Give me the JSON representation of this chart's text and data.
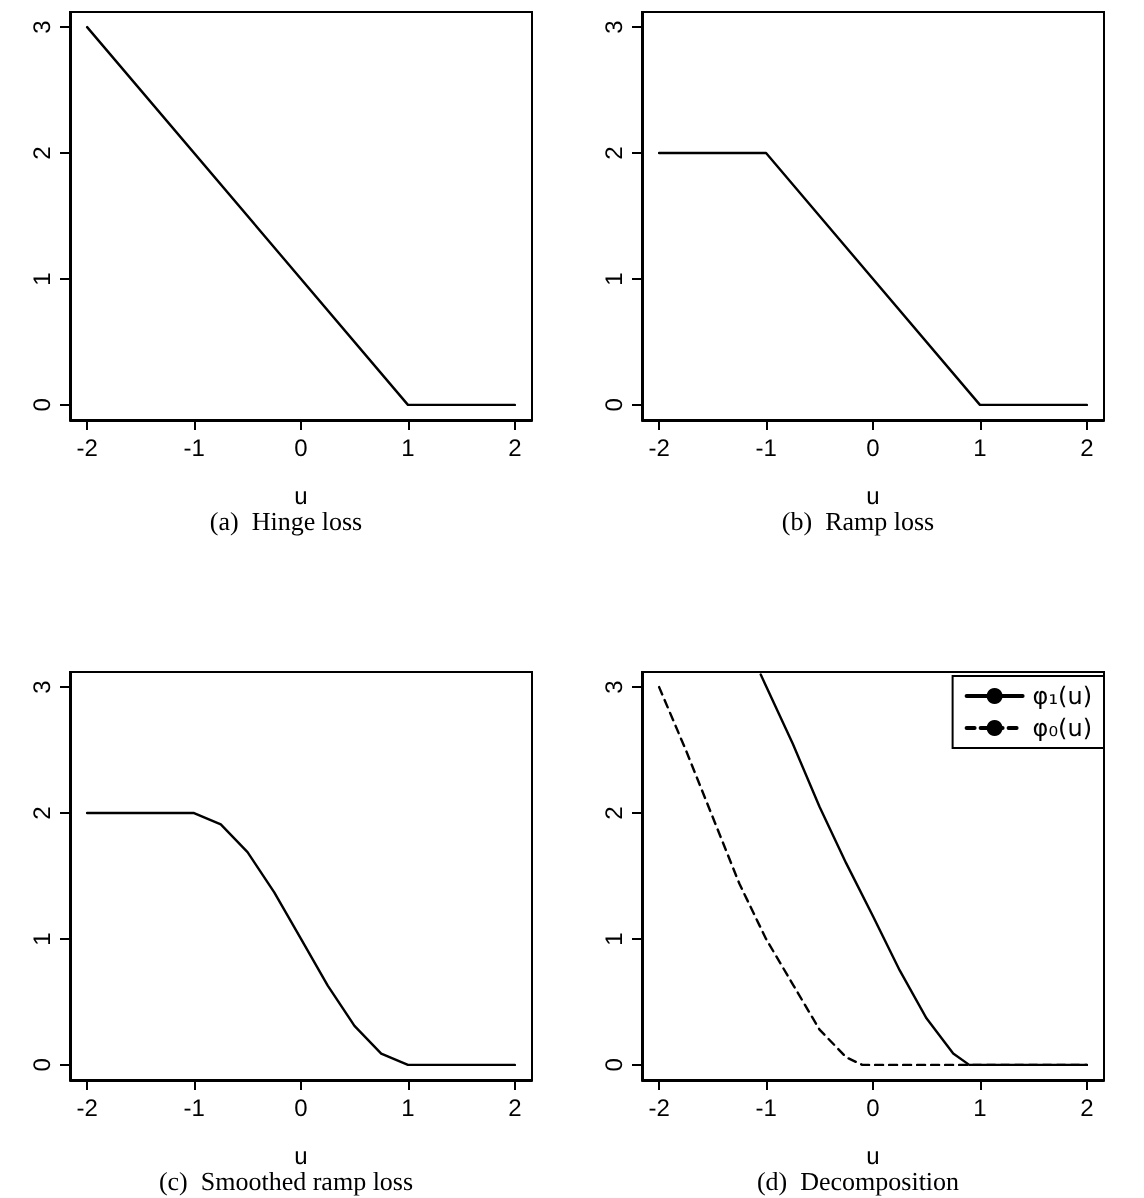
{
  "chart_data": [
    {
      "type": "line",
      "xlabel": "u",
      "annotations": [
        "(a)  Hinge loss"
      ],
      "xlim": [
        -2.16,
        2.16
      ],
      "ylim": [
        -0.12,
        3.12
      ],
      "xticks": [
        -2,
        -1,
        0,
        1,
        2
      ],
      "yticks": [
        0,
        1,
        2,
        3
      ],
      "grid": false,
      "legend": false,
      "marker": "none",
      "series": [
        {
          "color": "#000000",
          "line_style": "solid",
          "x": [
            -2,
            1,
            2
          ],
          "values": [
            3,
            0,
            0
          ]
        }
      ]
    },
    {
      "type": "line",
      "xlabel": "u",
      "annotations": [
        "(b)  Ramp loss"
      ],
      "xlim": [
        -2.16,
        2.16
      ],
      "ylim": [
        -0.12,
        3.12
      ],
      "xticks": [
        -2,
        -1,
        0,
        1,
        2
      ],
      "yticks": [
        0,
        1,
        2,
        3
      ],
      "grid": false,
      "legend": false,
      "marker": "none",
      "series": [
        {
          "color": "#000000",
          "line_style": "solid",
          "x": [
            -2,
            -1,
            1,
            2
          ],
          "values": [
            2,
            2,
            0,
            0
          ]
        }
      ]
    },
    {
      "type": "line",
      "xlabel": "u",
      "annotations": [
        "(c)  Smoothed ramp loss"
      ],
      "xlim": [
        -2.16,
        2.16
      ],
      "ylim": [
        -0.12,
        3.12
      ],
      "xticks": [
        -2,
        -1,
        0,
        1,
        2
      ],
      "yticks": [
        0,
        1,
        2,
        3
      ],
      "grid": false,
      "legend": false,
      "marker": "none",
      "series": [
        {
          "color": "#000000",
          "line_style": "solid",
          "x": [
            -2,
            -1,
            -0.75,
            -0.5,
            -0.25,
            0,
            0.25,
            0.5,
            0.75,
            1,
            2
          ],
          "values": [
            2,
            2,
            1.91,
            1.69,
            1.37,
            1,
            0.63,
            0.31,
            0.09,
            0,
            0
          ]
        }
      ]
    },
    {
      "type": "line",
      "xlabel": "u",
      "annotations": [
        "(d)  Decomposition"
      ],
      "xlim": [
        -2.16,
        2.16
      ],
      "ylim": [
        -0.12,
        3.12
      ],
      "xticks": [
        -2,
        -1,
        0,
        1,
        2
      ],
      "yticks": [
        0,
        1,
        2,
        3
      ],
      "grid": false,
      "legend": "top right",
      "marker": "none",
      "series": [
        {
          "name": "φ₁(u)",
          "color": "#000000",
          "line_style": "solid",
          "x": [
            -1.05,
            -0.75,
            -0.5,
            -0.25,
            0,
            0.25,
            0.5,
            0.75,
            0.9,
            2
          ],
          "values": [
            3.1,
            2.55,
            2.05,
            1.6,
            1.18,
            0.75,
            0.37,
            0.09,
            0,
            0
          ]
        },
        {
          "name": "φ₀(u)",
          "color": "#000000",
          "line_style": "dashed",
          "x": [
            -2,
            -1.75,
            -1.5,
            -1.25,
            -1,
            -0.75,
            -0.5,
            -0.25,
            -0.1,
            2
          ],
          "values": [
            3,
            2.5,
            1.97,
            1.44,
            1.0,
            0.64,
            0.28,
            0.06,
            0,
            0
          ]
        }
      ]
    }
  ]
}
